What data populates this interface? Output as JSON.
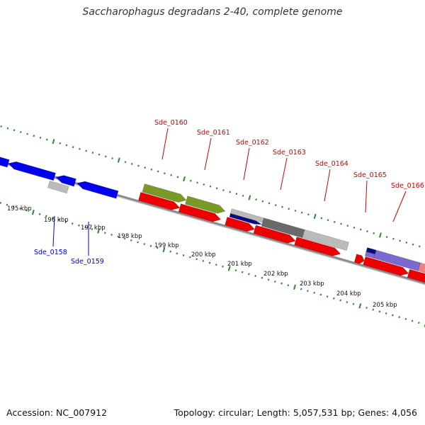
{
  "title": "Saccharophagus degradans 2-40, complete genome",
  "footer": {
    "accession": "Accession: NC_007912",
    "summary": "Topology: circular; Length: 5,057,531 bp; Genes: 4,056"
  },
  "colors": {
    "backbone": "#8a8a8a",
    "ticks": "#2a8a2a",
    "kbp_label": "#111111",
    "forward_label": "#cc0000",
    "reverse_label": "#0000cc",
    "cds": "#ee0000",
    "olive_gene": "#7a9a28",
    "blue_gene": "#0000ee",
    "navy_gene": "#0a0a80",
    "gray_gene": "#bbbbbb",
    "dark_gray_gene": "#6a6a6a",
    "violet_gene": "#7b68d0",
    "pink_gene": "#f08080",
    "cyan_gene": "#00cccc"
  },
  "scale_labels": [
    {
      "kbp": 195,
      "text": "195 kbp"
    },
    {
      "kbp": 196,
      "text": "196 kbp"
    },
    {
      "kbp": 197,
      "text": "197 kbp"
    },
    {
      "kbp": 198,
      "text": "198 kbp"
    },
    {
      "kbp": 199,
      "text": "199 kbp"
    },
    {
      "kbp": 200,
      "text": "200 kbp"
    },
    {
      "kbp": 201,
      "text": "201 kbp"
    },
    {
      "kbp": 202,
      "text": "202 kbp"
    },
    {
      "kbp": 203,
      "text": "203 kbp"
    },
    {
      "kbp": 204,
      "text": "204 kbp"
    },
    {
      "kbp": 205,
      "text": "205 kbp"
    }
  ],
  "gene_labels": [
    {
      "text": "Sde_0158",
      "strand": "reverse"
    },
    {
      "text": "Sde_0159",
      "strand": "reverse"
    },
    {
      "text": "Sde_0160",
      "strand": "forward"
    },
    {
      "text": "Sde_0161",
      "strand": "forward"
    },
    {
      "text": "Sde_0162",
      "strand": "forward"
    },
    {
      "text": "Sde_0163",
      "strand": "forward"
    },
    {
      "text": "Sde_0164",
      "strand": "forward"
    },
    {
      "text": "Sde_0165",
      "strand": "forward"
    },
    {
      "text": "Sde_0166",
      "strand": "forward"
    }
  ]
}
